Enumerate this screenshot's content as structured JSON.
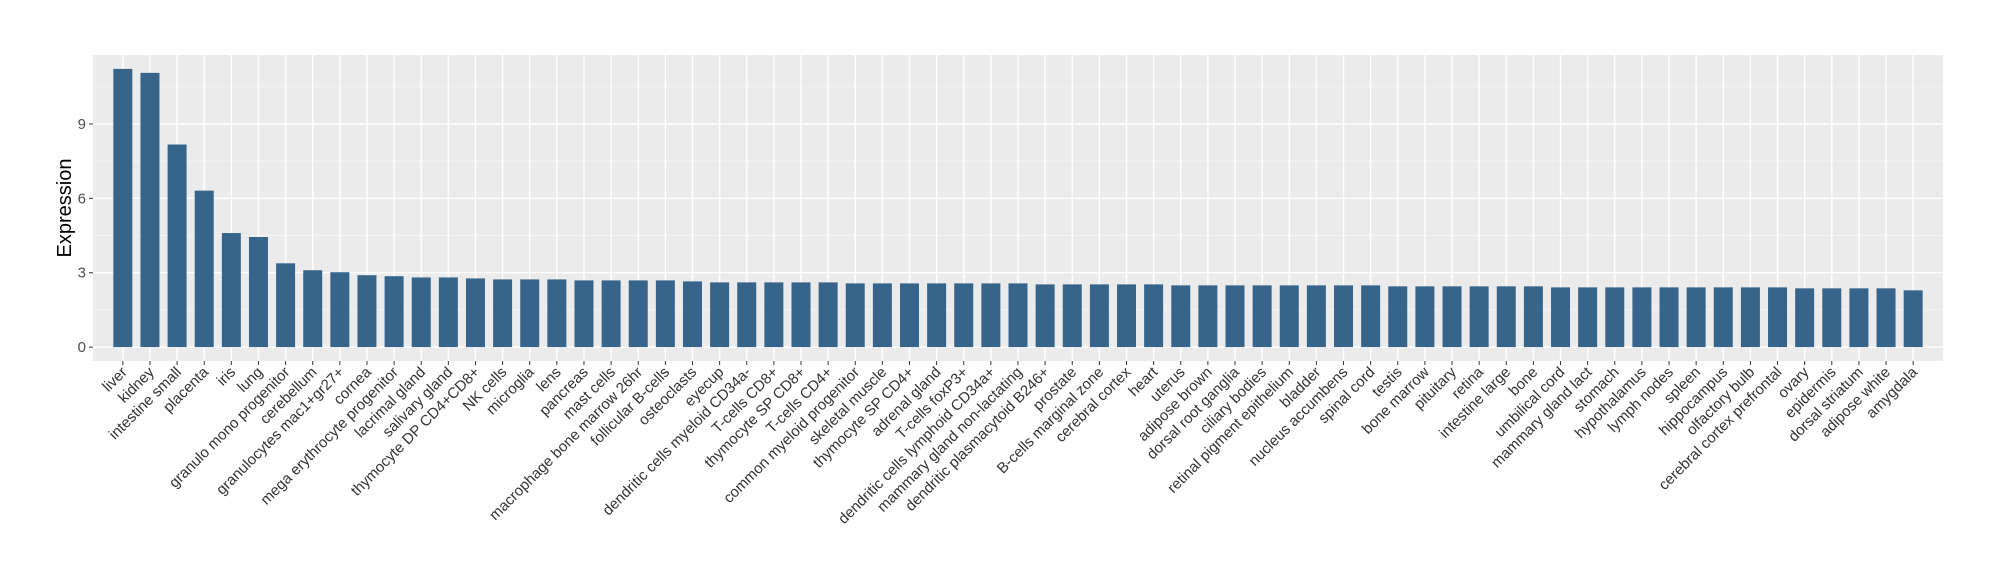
{
  "chart_data": {
    "type": "bar",
    "title": "",
    "xlabel": "",
    "ylabel": "Expression",
    "ylim": [
      -0.56,
      11.78
    ],
    "yticks": [
      0,
      3,
      6,
      9
    ],
    "grid": true,
    "legend": "none",
    "colors": {
      "bar": "#36648B",
      "panel": "#EBEBEB",
      "grid": "#FFFFFF"
    },
    "categories": [
      "liver",
      "kidney",
      "intestine small",
      "placenta",
      "iris",
      "lung",
      "granulo mono progenitor",
      "cerebellum",
      "granulocytes mac1+gr27+",
      "cornea",
      "mega erythrocyte progenitor",
      "lacrimal gland",
      "salivary gland",
      "thymocyte DP CD4+CD8+",
      "NK cells",
      "microglia",
      "lens",
      "pancreas",
      "mast cells",
      "macrophage bone marrow 26hr",
      "follicular B-cells",
      "osteoclasts",
      "eyecup",
      "dendritic cells myeloid CD34a-",
      "T-cells CD8+",
      "thymocyte SP CD8+",
      "T-cells CD4+",
      "common myeloid progenitor",
      "skeletal muscle",
      "thymocyte SP CD4+",
      "adrenal gland",
      "T-cells foxP3+",
      "dendritic cells lymphoid CD34a+",
      "mammary gland non-lactating",
      "dendritic plasmacytoid B246+",
      "prostate",
      "B-cells marginal zone",
      "cerebral cortex",
      "heart",
      "uterus",
      "adipose brown",
      "dorsal root ganglia",
      "ciliary bodies",
      "retinal pigment epithelium",
      "bladder",
      "nucleus accumbens",
      "spinal cord",
      "testis",
      "bone marrow",
      "pituitary",
      "retina",
      "intestine large",
      "bone",
      "umbilical cord",
      "mammary gland  lact",
      "stomach",
      "hypothalamus",
      "lymph nodes",
      "spleen",
      "hippocampus",
      "olfactory bulb",
      "cerebral cortex prefrontal",
      "ovary",
      "epidermis",
      "dorsal striatum",
      "adipose white",
      "amygdala"
    ],
    "values": [
      11.22,
      11.06,
      8.17,
      6.31,
      4.6,
      4.44,
      3.38,
      3.1,
      3.02,
      2.9,
      2.86,
      2.81,
      2.81,
      2.77,
      2.73,
      2.73,
      2.73,
      2.69,
      2.69,
      2.69,
      2.69,
      2.65,
      2.61,
      2.61,
      2.61,
      2.61,
      2.61,
      2.57,
      2.57,
      2.57,
      2.57,
      2.57,
      2.57,
      2.57,
      2.53,
      2.53,
      2.53,
      2.53,
      2.53,
      2.49,
      2.49,
      2.49,
      2.49,
      2.49,
      2.49,
      2.49,
      2.49,
      2.45,
      2.45,
      2.45,
      2.45,
      2.45,
      2.45,
      2.41,
      2.41,
      2.41,
      2.41,
      2.41,
      2.41,
      2.41,
      2.41,
      2.41,
      2.37,
      2.37,
      2.37,
      2.37,
      2.29
    ]
  }
}
